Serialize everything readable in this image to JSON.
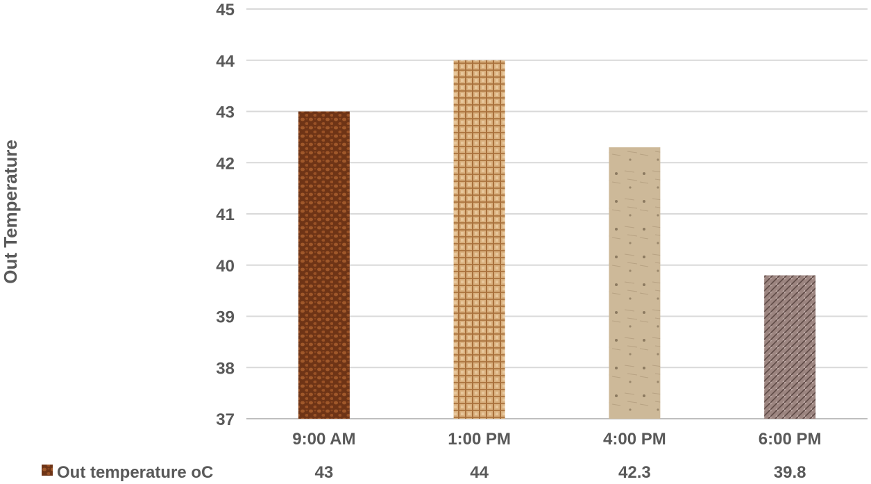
{
  "chart_data": {
    "type": "bar",
    "title": "",
    "xlabel": "",
    "ylabel": "Out Temperature",
    "ylim": [
      37,
      45
    ],
    "yticks": [
      37,
      38,
      39,
      40,
      41,
      42,
      43,
      44,
      45
    ],
    "grid": true,
    "categories": [
      "9:00 AM",
      "1:00 PM",
      "4:00 PM",
      "6:00 PM"
    ],
    "series": [
      {
        "name": "Out temperature oC",
        "values": [
          43,
          44,
          42.3,
          39.8
        ],
        "value_labels": [
          "43",
          "44",
          "42.3",
          "39.8"
        ]
      }
    ],
    "bar_colors": [
      "#7a3d1c",
      "#c99a68",
      "#c8b495",
      "#8f7670"
    ],
    "data_table": true
  }
}
